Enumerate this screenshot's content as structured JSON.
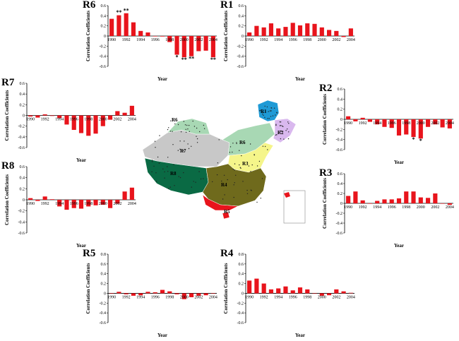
{
  "colors": {
    "bar": "#e8141c",
    "axis": "#000000",
    "map_R1": "#1e9ad6",
    "map_R2": "#d9b8ee",
    "map_R3": "#f5f58a",
    "map_R4": "#6f6a1c",
    "map_R5": "#e8141c",
    "map_R6": "#a8d8b4",
    "map_R7": "#c8c8c8",
    "map_R8": "#0a6a44"
  },
  "map": {
    "region_labels": [
      "R1",
      "R2",
      "R3",
      "R4",
      "R5",
      "R6",
      "R7",
      "R8",
      "R6"
    ]
  },
  "chart_data": [
    {
      "id": "R6",
      "type": "bar",
      "title": "R6",
      "xlabel": "Year",
      "ylabel": "Correlation Coefficients",
      "ylim": [
        -0.6,
        0.6
      ],
      "yticks": [
        "0.6",
        "0.4",
        "0.2",
        "0",
        "-0.2",
        "-0.4",
        "-0.6"
      ],
      "xticks": [
        "1990",
        "1992",
        "1994",
        "1996",
        "1998",
        "2000",
        "2002",
        "2004"
      ],
      "x": [
        1990,
        1991,
        1992,
        1993,
        1994,
        1995,
        1996,
        1997,
        1998,
        1999,
        2000,
        2001,
        2002,
        2003,
        2004
      ],
      "values": [
        0.34,
        0.41,
        0.45,
        0.27,
        0.1,
        0.07,
        0.0,
        -0.01,
        -0.12,
        -0.37,
        -0.42,
        -0.4,
        -0.3,
        -0.29,
        -0.42
      ],
      "marks": [
        "",
        "**",
        "**",
        "",
        "",
        "",
        "",
        "",
        "",
        "*",
        "**",
        "**",
        "",
        "",
        "**"
      ]
    },
    {
      "id": "R1",
      "type": "bar",
      "title": "R1",
      "xlabel": "Year",
      "ylabel": "Correlation Coefficients",
      "ylim": [
        -0.6,
        0.6
      ],
      "yticks": [
        "0.6",
        "0.4",
        "0.2",
        "0",
        "-0.2",
        "-0.4",
        "-0.6"
      ],
      "xticks": [
        "1990",
        "1992",
        "1994",
        "1996",
        "1998",
        "2000",
        "2002",
        "2004"
      ],
      "x": [
        1990,
        1991,
        1992,
        1993,
        1994,
        1995,
        1996,
        1997,
        1998,
        1999,
        2000,
        2001,
        2002,
        2003,
        2004
      ],
      "values": [
        0.07,
        0.2,
        0.17,
        0.25,
        0.15,
        0.18,
        0.26,
        0.21,
        0.25,
        0.24,
        0.17,
        0.12,
        0.1,
        -0.02,
        0.15
      ],
      "marks": [
        "",
        "",
        "",
        "",
        "",
        "",
        "",
        "",
        "",
        "",
        "",
        "",
        "",
        "",
        ""
      ]
    },
    {
      "id": "R7",
      "type": "bar",
      "title": "R7",
      "xlabel": "Year",
      "ylabel": "Correlation Coefficients",
      "ylim": [
        -0.6,
        0.6
      ],
      "yticks": [
        "0.6",
        "0.4",
        "0.2",
        "0",
        "-0.2",
        "-0.4",
        "-0.6"
      ],
      "xticks": [
        "1990",
        "1992",
        "1994",
        "1996",
        "1998",
        "2000",
        "2002",
        "2004"
      ],
      "x": [
        1990,
        1991,
        1992,
        1993,
        1994,
        1995,
        1996,
        1997,
        1998,
        1999,
        2000,
        2001,
        2002,
        2003,
        2004
      ],
      "values": [
        -0.02,
        -0.04,
        0.02,
        -0.01,
        -0.05,
        -0.17,
        -0.27,
        -0.33,
        -0.38,
        -0.34,
        -0.2,
        -0.08,
        0.08,
        0.05,
        0.18
      ],
      "marks": [
        "",
        "",
        "",
        "",
        "",
        "",
        "",
        "",
        "",
        "",
        "",
        "",
        "",
        "",
        ""
      ]
    },
    {
      "id": "R2",
      "type": "bar",
      "title": "R2",
      "xlabel": "Year",
      "ylabel": "Correlation Coefficients",
      "ylim": [
        -0.6,
        0.6
      ],
      "yticks": [
        "0.6",
        "0.4",
        "0.2",
        "0",
        "-0.2",
        "-0.4",
        "-0.6"
      ],
      "xticks": [
        "1990",
        "1992",
        "1994",
        "1996",
        "1998",
        "2000",
        "2002",
        "2004"
      ],
      "x": [
        1990,
        1991,
        1992,
        1993,
        1994,
        1995,
        1996,
        1997,
        1998,
        1999,
        2000,
        2001,
        2002,
        2003,
        2004
      ],
      "values": [
        0.06,
        -0.04,
        0.03,
        -0.05,
        -0.1,
        -0.15,
        -0.17,
        -0.32,
        -0.3,
        -0.35,
        -0.38,
        -0.15,
        -0.1,
        -0.16,
        -0.18
      ],
      "marks": [
        "",
        "",
        "",
        "",
        "",
        "",
        "",
        "",
        "",
        "*",
        "*",
        "",
        "",
        "",
        ""
      ]
    },
    {
      "id": "R8",
      "type": "bar",
      "title": "R8",
      "xlabel": "Year",
      "ylabel": "Correlation Coefficients",
      "ylim": [
        -0.6,
        0.6
      ],
      "yticks": [
        "0.6",
        "0.4",
        "0.2",
        "0",
        "-0.2",
        "-0.4",
        "-0.6"
      ],
      "xticks": [
        "1990",
        "1992",
        "1994",
        "1996",
        "1998",
        "2000",
        "2002",
        "2004"
      ],
      "x": [
        1990,
        1991,
        1992,
        1993,
        1994,
        1995,
        1996,
        1997,
        1998,
        1999,
        2000,
        2001,
        2002,
        2003,
        2004
      ],
      "values": [
        0.03,
        -0.02,
        0.06,
        0.01,
        -0.12,
        -0.18,
        -0.15,
        -0.16,
        -0.12,
        -0.1,
        -0.09,
        -0.15,
        -0.07,
        0.15,
        0.22
      ],
      "marks": [
        "",
        "",
        "",
        "",
        "",
        "",
        "",
        "",
        "",
        "",
        "",
        "",
        "",
        "",
        ""
      ]
    },
    {
      "id": "R3",
      "type": "bar",
      "title": "R3",
      "xlabel": "Year",
      "ylabel": "Correlation Coefficients",
      "ylim": [
        -0.6,
        0.6
      ],
      "yticks": [
        "0.6",
        "0.4",
        "0.2",
        "0",
        "-0.2",
        "-0.4",
        "-0.6"
      ],
      "xticks": [
        "1990",
        "1992",
        "1994",
        "1996",
        "1998",
        "2000",
        "2002",
        "2004"
      ],
      "x": [
        1990,
        1991,
        1992,
        1993,
        1994,
        1995,
        1996,
        1997,
        1998,
        1999,
        2000,
        2001,
        2002,
        2003,
        2004
      ],
      "values": [
        0.15,
        0.24,
        0.06,
        0.0,
        0.05,
        0.08,
        0.08,
        0.1,
        0.24,
        0.24,
        0.12,
        0.11,
        0.2,
        0.0,
        -0.03
      ],
      "marks": [
        "",
        "",
        "",
        "",
        "",
        "",
        "",
        "",
        "",
        "",
        "",
        "",
        "",
        "",
        ""
      ]
    },
    {
      "id": "R5",
      "type": "bar",
      "title": "R5",
      "xlabel": "Year",
      "ylabel": "Correlation Coefficients",
      "ylim": [
        -0.6,
        0.6
      ],
      "yticks": [
        "0.8",
        "0.6",
        "0.4",
        "0.2",
        "0",
        "-0.2",
        "-0.4",
        "-0.6"
      ],
      "xticks": [
        "1990",
        "1992",
        "1994",
        "1996",
        "1998",
        "2000",
        "2002",
        "2004"
      ],
      "x": [
        1990,
        1991,
        1992,
        1993,
        1994,
        1995,
        1996,
        1997,
        1998,
        1999,
        2000,
        2001,
        2002,
        2003,
        2004
      ],
      "values": [
        0.0,
        0.03,
        -0.02,
        -0.05,
        -0.04,
        0.03,
        0.02,
        0.07,
        0.04,
        -0.02,
        -0.12,
        -0.08,
        -0.05,
        -0.04,
        0.0
      ],
      "marks": [
        "",
        "",
        "",
        "",
        "",
        "",
        "",
        "",
        "",
        "",
        "",
        "",
        "",
        "",
        ""
      ]
    },
    {
      "id": "R4",
      "type": "bar",
      "title": "R4",
      "xlabel": "Year",
      "ylabel": "Correlation Coefficients",
      "ylim": [
        -0.6,
        0.6
      ],
      "yticks": [
        "0.8",
        "0.6",
        "0.4",
        "0.2",
        "0",
        "-0.2",
        "-0.4",
        "-0.6"
      ],
      "xticks": [
        "1990",
        "1992",
        "1994",
        "1996",
        "1998",
        "2000",
        "2002",
        "2004"
      ],
      "x": [
        1990,
        1991,
        1992,
        1993,
        1994,
        1995,
        1996,
        1997,
        1998,
        1999,
        2000,
        2001,
        2002,
        2003,
        2004
      ],
      "values": [
        0.26,
        0.3,
        0.2,
        0.08,
        0.1,
        0.14,
        0.06,
        0.12,
        0.08,
        0.0,
        -0.05,
        -0.04,
        0.08,
        0.04,
        0.01
      ],
      "marks": [
        "",
        "",
        "",
        "",
        "",
        "",
        "",
        "",
        "",
        "",
        "",
        "",
        "",
        "",
        ""
      ]
    }
  ]
}
